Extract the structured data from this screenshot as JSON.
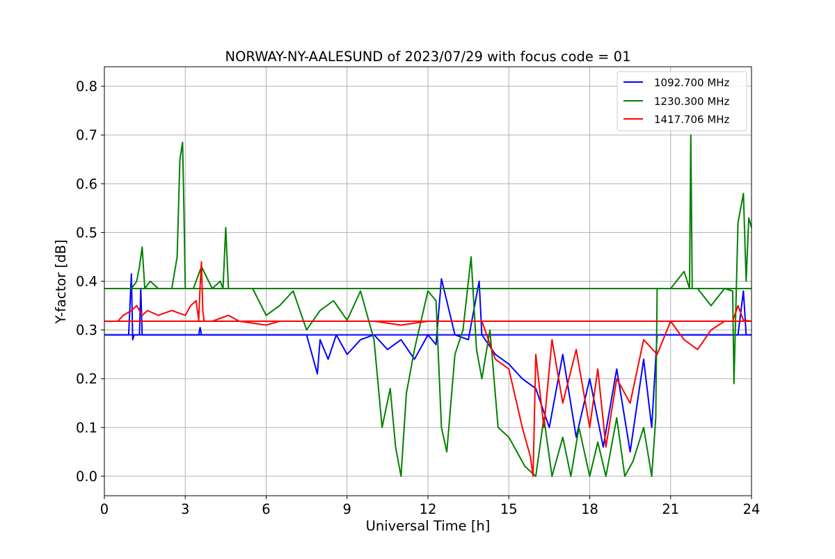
{
  "chart_data": {
    "type": "line",
    "title": "NORWAY-NY-AALESUND of 2023/07/29 with focus code = 01",
    "xlabel": "Universal Time [h]",
    "ylabel": "Y-factor [dB]",
    "xlim": [
      0,
      24
    ],
    "ylim": [
      -0.04,
      0.84
    ],
    "xticks": [
      0,
      3,
      6,
      9,
      12,
      15,
      18,
      21,
      24
    ],
    "yticks": [
      0.0,
      0.1,
      0.2,
      0.3,
      0.4,
      0.5,
      0.6,
      0.7,
      0.8
    ],
    "xtick_labels": [
      "0",
      "3",
      "6",
      "9",
      "12",
      "15",
      "18",
      "21",
      "24"
    ],
    "ytick_labels": [
      "0.0",
      "0.1",
      "0.2",
      "0.3",
      "0.4",
      "0.5",
      "0.6",
      "0.7",
      "0.8"
    ],
    "grid": true,
    "legend_position": "top-right",
    "series": [
      {
        "name": "1092.700 MHz",
        "color": "#0000ff",
        "baseline": 0.29,
        "x": [
          0.0,
          0.9,
          1.0,
          1.05,
          1.1,
          1.3,
          1.35,
          1.4,
          3.5,
          3.55,
          3.6,
          7.5,
          7.9,
          8.0,
          8.3,
          8.6,
          9.0,
          9.5,
          10.0,
          10.5,
          11.0,
          11.5,
          12.0,
          12.3,
          12.5,
          13.0,
          13.5,
          13.9,
          14.0,
          14.5,
          15.0,
          15.5,
          16.0,
          16.5,
          17.0,
          17.5,
          18.0,
          18.5,
          19.0,
          19.5,
          20.0,
          20.3,
          20.5,
          21.0,
          22.0,
          23.0,
          23.5,
          23.7,
          23.8,
          24.0
        ],
        "y": [
          0.29,
          0.29,
          0.415,
          0.28,
          0.29,
          0.29,
          0.385,
          0.29,
          0.29,
          0.305,
          0.29,
          0.29,
          0.21,
          0.28,
          0.24,
          0.29,
          0.25,
          0.28,
          0.29,
          0.26,
          0.28,
          0.24,
          0.29,
          0.27,
          0.405,
          0.29,
          0.28,
          0.4,
          0.29,
          0.25,
          0.23,
          0.2,
          0.18,
          0.1,
          0.25,
          0.08,
          0.2,
          0.06,
          0.22,
          0.05,
          0.24,
          0.1,
          0.29,
          0.29,
          0.29,
          0.29,
          0.29,
          0.38,
          0.29,
          0.29
        ]
      },
      {
        "name": "1230.300 MHz",
        "color": "#008000",
        "baseline": 0.385,
        "x": [
          0.0,
          1.0,
          1.2,
          1.3,
          1.4,
          1.5,
          1.7,
          2.0,
          2.5,
          2.7,
          2.8,
          2.9,
          2.95,
          3.0,
          3.1,
          3.3,
          3.6,
          4.0,
          4.3,
          4.4,
          4.5,
          4.6,
          5.0,
          5.5,
          6.0,
          6.5,
          7.0,
          7.5,
          8.0,
          8.5,
          9.0,
          9.5,
          10.0,
          10.3,
          10.6,
          10.8,
          11.0,
          11.2,
          11.5,
          12.0,
          12.3,
          12.5,
          12.7,
          13.0,
          13.3,
          13.6,
          13.8,
          14.0,
          14.3,
          14.6,
          15.0,
          15.3,
          15.6,
          16.0,
          16.3,
          16.6,
          17.0,
          17.3,
          17.6,
          18.0,
          18.3,
          18.6,
          19.0,
          19.3,
          19.6,
          20.0,
          20.3,
          20.45,
          20.5,
          21.0,
          21.5,
          21.7,
          21.75,
          21.8,
          22.0,
          22.5,
          23.0,
          23.3,
          23.35,
          23.5,
          23.7,
          23.8,
          23.9,
          24.0
        ],
        "y": [
          0.385,
          0.385,
          0.4,
          0.43,
          0.47,
          0.385,
          0.4,
          0.385,
          0.385,
          0.45,
          0.65,
          0.685,
          0.55,
          0.385,
          0.385,
          0.385,
          0.43,
          0.385,
          0.4,
          0.385,
          0.51,
          0.385,
          0.385,
          0.385,
          0.33,
          0.35,
          0.38,
          0.3,
          0.34,
          0.36,
          0.32,
          0.38,
          0.28,
          0.1,
          0.18,
          0.06,
          0.0,
          0.17,
          0.26,
          0.38,
          0.36,
          0.1,
          0.05,
          0.25,
          0.3,
          0.45,
          0.26,
          0.2,
          0.3,
          0.1,
          0.08,
          0.05,
          0.02,
          0.0,
          0.12,
          0.0,
          0.08,
          0.0,
          0.1,
          0.0,
          0.07,
          0.0,
          0.12,
          0.0,
          0.03,
          0.1,
          0.0,
          0.12,
          0.385,
          0.385,
          0.42,
          0.385,
          0.7,
          0.385,
          0.385,
          0.35,
          0.385,
          0.38,
          0.19,
          0.52,
          0.58,
          0.4,
          0.53,
          0.51
        ]
      },
      {
        "name": "1417.706 MHz",
        "color": "#ff0000",
        "baseline": 0.318,
        "x": [
          0.0,
          0.5,
          0.7,
          1.0,
          1.2,
          1.4,
          1.6,
          2.0,
          2.5,
          3.0,
          3.2,
          3.4,
          3.5,
          3.55,
          3.6,
          3.65,
          3.7,
          4.0,
          4.6,
          5.0,
          6.0,
          6.5,
          7.0,
          8.0,
          9.0,
          10.0,
          11.0,
          12.0,
          13.0,
          14.0,
          14.5,
          15.0,
          15.5,
          15.8,
          15.9,
          16.0,
          16.3,
          16.6,
          17.0,
          17.5,
          18.0,
          18.3,
          18.6,
          19.0,
          19.5,
          20.0,
          20.5,
          21.0,
          21.5,
          22.0,
          22.5,
          23.0,
          23.3,
          23.5,
          23.7,
          24.0
        ],
        "y": [
          0.318,
          0.318,
          0.33,
          0.34,
          0.35,
          0.33,
          0.34,
          0.33,
          0.34,
          0.33,
          0.35,
          0.36,
          0.32,
          0.39,
          0.44,
          0.34,
          0.318,
          0.318,
          0.33,
          0.318,
          0.31,
          0.318,
          0.318,
          0.318,
          0.318,
          0.318,
          0.31,
          0.318,
          0.318,
          0.318,
          0.24,
          0.22,
          0.1,
          0.04,
          0.0,
          0.25,
          0.1,
          0.28,
          0.15,
          0.26,
          0.1,
          0.22,
          0.06,
          0.2,
          0.15,
          0.28,
          0.25,
          0.318,
          0.28,
          0.26,
          0.3,
          0.318,
          0.318,
          0.35,
          0.32,
          0.318
        ]
      }
    ]
  }
}
